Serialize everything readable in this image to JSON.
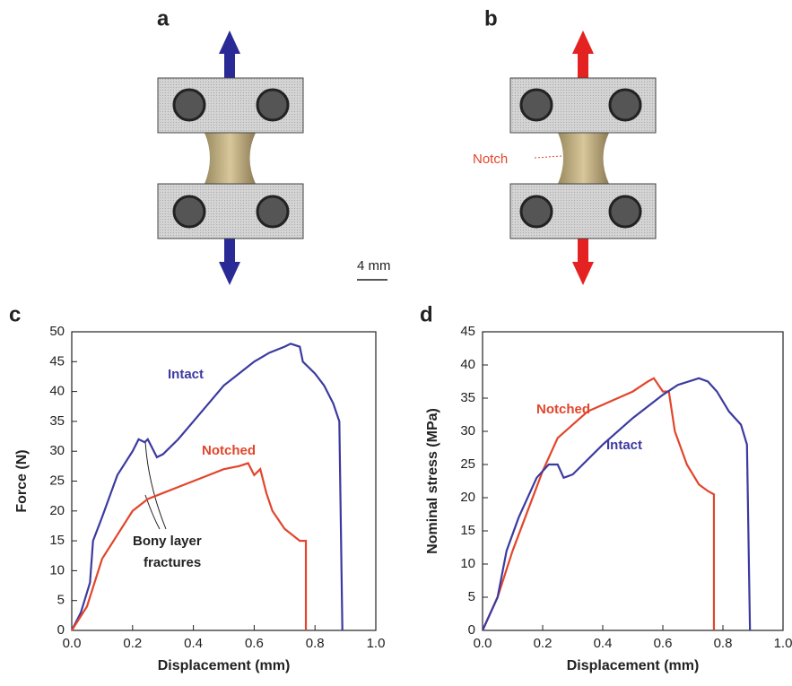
{
  "figure": {
    "panel_labels": [
      "a",
      "b",
      "c",
      "d"
    ],
    "notch_label": "Notch",
    "scale_bar": "4 mm"
  },
  "chart_data": [
    {
      "type": "line",
      "xlabel": "Displacement (mm)",
      "ylabel": "Force (N)",
      "xlim": [
        0,
        1
      ],
      "xticks": [
        {
          "value": 0,
          "label": "0.0"
        },
        0.2,
        0.4,
        0.6,
        0.8,
        {
          "value": 1,
          "label": "1.0"
        }
      ],
      "ylim": [
        0,
        50
      ],
      "yticks": [
        0,
        5,
        10,
        15,
        20,
        25,
        30,
        35,
        40,
        45,
        50
      ],
      "annotations": [
        "Intact",
        "Notched",
        "Bony layer",
        "fractures"
      ],
      "series": [
        {
          "name": "Intact",
          "color": "#3c3aa0",
          "x": [
            0,
            0.03,
            0.06,
            0.07,
            0.1,
            0.15,
            0.2,
            0.22,
            0.24,
            0.25,
            0.26,
            0.28,
            0.3,
            0.35,
            0.4,
            0.45,
            0.5,
            0.55,
            0.6,
            0.65,
            0.7,
            0.72,
            0.75,
            0.76,
            0.8,
            0.83,
            0.86,
            0.88,
            0.89
          ],
          "values": [
            0,
            3,
            8,
            15,
            19,
            26,
            30,
            32,
            31.5,
            32,
            31,
            29,
            29.5,
            32,
            35,
            38,
            41,
            43,
            45,
            46.5,
            47.5,
            48,
            47.5,
            45,
            43,
            41,
            38,
            35,
            0
          ]
        },
        {
          "name": "Notched",
          "color": "#e2452b",
          "x": [
            0,
            0.05,
            0.1,
            0.15,
            0.2,
            0.25,
            0.3,
            0.35,
            0.4,
            0.45,
            0.5,
            0.55,
            0.58,
            0.6,
            0.62,
            0.64,
            0.66,
            0.7,
            0.75,
            0.77,
            0.77
          ],
          "values": [
            0,
            4,
            12,
            16,
            20,
            22,
            23,
            24,
            25,
            26,
            27,
            27.5,
            28,
            26,
            27,
            23,
            20,
            17,
            15,
            15,
            0
          ]
        }
      ]
    },
    {
      "type": "line",
      "xlabel": "Displacement (mm)",
      "ylabel": "Nominal stress (MPa)",
      "xlim": [
        0,
        1
      ],
      "xticks": [
        {
          "value": 0,
          "label": "0.0"
        },
        0.2,
        0.4,
        0.6,
        0.8,
        {
          "value": 1,
          "label": "1.0"
        }
      ],
      "ylim": [
        0,
        45
      ],
      "yticks": [
        0,
        5,
        10,
        15,
        20,
        25,
        30,
        35,
        40,
        45
      ],
      "annotations": [
        "Notched",
        "Intact"
      ],
      "series": [
        {
          "name": "Notched",
          "color": "#e2452b",
          "x": [
            0,
            0.05,
            0.1,
            0.15,
            0.2,
            0.25,
            0.3,
            0.35,
            0.4,
            0.45,
            0.5,
            0.55,
            0.57,
            0.6,
            0.62,
            0.64,
            0.68,
            0.72,
            0.75,
            0.77,
            0.77
          ],
          "values": [
            0,
            5,
            12,
            18,
            24,
            29,
            31,
            33,
            34,
            35,
            36,
            37.5,
            38,
            36,
            36,
            30,
            25,
            22,
            21,
            20.5,
            0
          ]
        },
        {
          "name": "Intact",
          "color": "#3c3aa0",
          "x": [
            0,
            0.05,
            0.08,
            0.12,
            0.18,
            0.22,
            0.25,
            0.27,
            0.3,
            0.4,
            0.5,
            0.6,
            0.65,
            0.72,
            0.75,
            0.78,
            0.82,
            0.86,
            0.88,
            0.89
          ],
          "values": [
            0,
            5,
            12,
            17,
            23,
            25,
            25,
            23,
            23.5,
            28,
            32,
            35.5,
            37,
            38,
            37.5,
            36,
            33,
            31,
            28,
            0
          ]
        }
      ]
    }
  ]
}
